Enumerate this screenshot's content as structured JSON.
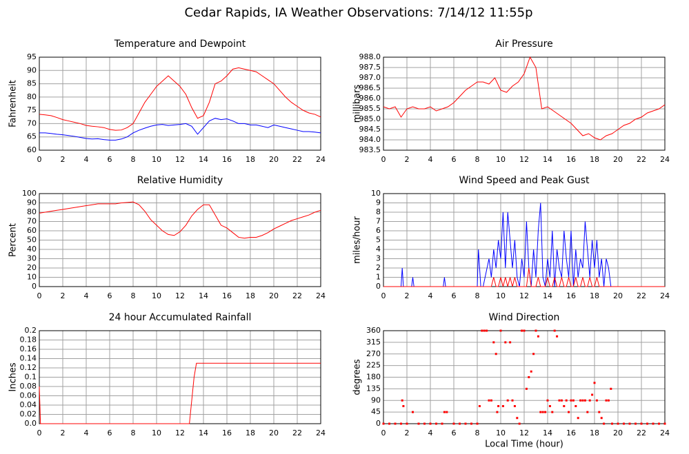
{
  "title": "Cedar Rapids, IA Weather Observations: 7/14/12 11:55p",
  "chart_data": [
    {
      "type": "line",
      "title": "Temperature and Dewpoint",
      "ylabel": "Fahrenheit",
      "grid": true,
      "xlim": [
        0,
        24
      ],
      "xticks": [
        0,
        2,
        4,
        6,
        8,
        10,
        12,
        14,
        16,
        18,
        20,
        22,
        24
      ],
      "ylim": [
        60,
        95
      ],
      "yticks": [
        60,
        65,
        70,
        75,
        80,
        85,
        90,
        95
      ],
      "x": [
        0,
        0.5,
        1,
        1.5,
        2,
        2.5,
        3,
        3.5,
        4,
        4.5,
        5,
        5.5,
        6,
        6.5,
        7,
        7.5,
        8,
        8.5,
        9,
        9.5,
        10,
        10.5,
        11,
        11.5,
        12,
        12.5,
        13,
        13.5,
        14,
        14.5,
        15,
        15.5,
        16,
        16.5,
        17,
        17.5,
        18,
        18.5,
        19,
        19.5,
        20,
        20.5,
        21,
        21.5,
        22,
        22.5,
        23,
        23.5,
        24
      ],
      "series": [
        {
          "color": "#ff0000",
          "values": [
            73.5,
            73.3,
            73,
            72.3,
            71.5,
            71,
            70.5,
            70,
            69.3,
            69,
            68.8,
            68.5,
            67.8,
            67.5,
            67.6,
            68.5,
            70,
            74,
            78,
            81,
            84,
            86,
            88,
            86,
            84,
            81,
            76,
            72,
            73,
            78,
            85,
            86,
            88,
            90.5,
            91,
            90.5,
            90,
            89.5,
            88,
            86.5,
            85,
            82.5,
            80,
            78,
            76.5,
            75,
            74,
            73.5,
            72.5
          ]
        },
        {
          "color": "#0000ff",
          "values": [
            66.5,
            66.5,
            66.3,
            66,
            65.8,
            65.5,
            65.2,
            64.8,
            64.4,
            64.2,
            64.3,
            64,
            63.8,
            63.8,
            64.2,
            65,
            66.5,
            67.5,
            68.3,
            69,
            69.5,
            69.7,
            69.3,
            69.5,
            69.7,
            70,
            69,
            66,
            68.5,
            71,
            72,
            71.5,
            71.8,
            71,
            70,
            70,
            69.5,
            69.5,
            69,
            68.5,
            69.5,
            69,
            68.5,
            68,
            67.5,
            67,
            67,
            66.8,
            66.5
          ]
        }
      ]
    },
    {
      "type": "line",
      "title": "Air Pressure",
      "ylabel": "millibars",
      "grid": true,
      "xlim": [
        0,
        24
      ],
      "xticks": [
        0,
        2,
        4,
        6,
        8,
        10,
        12,
        14,
        16,
        18,
        20,
        22,
        24
      ],
      "ylim": [
        983.5,
        988
      ],
      "yticks": [
        983.5,
        {
          "value": 984,
          "label": "984.0"
        },
        984.5,
        {
          "value": 985,
          "label": "985.0"
        },
        985.5,
        {
          "value": 986,
          "label": "986.0"
        },
        986.5,
        {
          "value": 987,
          "label": "987.0"
        },
        987.5,
        {
          "value": 988,
          "label": "988.0"
        }
      ],
      "x": [
        0,
        0.5,
        1,
        1.5,
        2,
        2.5,
        3,
        3.5,
        4,
        4.5,
        5,
        5.5,
        6,
        6.5,
        7,
        7.5,
        8,
        8.5,
        9,
        9.5,
        10,
        10.5,
        11,
        11.5,
        12,
        12.5,
        13,
        13.5,
        14,
        14.5,
        15,
        15.5,
        16,
        16.5,
        17,
        17.5,
        18,
        18.5,
        19,
        19.5,
        20,
        20.5,
        21,
        21.5,
        22,
        22.5,
        23,
        23.5,
        24
      ],
      "series": [
        {
          "color": "#ff0000",
          "values": [
            985.6,
            985.5,
            985.6,
            985.1,
            985.5,
            985.6,
            985.5,
            985.5,
            985.6,
            985.4,
            985.5,
            985.6,
            985.8,
            986.1,
            986.4,
            986.6,
            986.8,
            986.8,
            986.7,
            987.0,
            986.4,
            986.3,
            986.6,
            986.8,
            987.2,
            988.0,
            987.5,
            985.5,
            985.6,
            985.4,
            985.2,
            985.0,
            984.8,
            984.5,
            984.2,
            984.3,
            984.1,
            984.0,
            984.2,
            984.3,
            984.5,
            984.7,
            984.8,
            985.0,
            985.1,
            985.3,
            985.4,
            985.5,
            985.7
          ]
        }
      ]
    },
    {
      "type": "line",
      "title": "Relative Humidity",
      "ylabel": "Percent",
      "grid": true,
      "xlim": [
        0,
        24
      ],
      "xticks": [
        0,
        2,
        4,
        6,
        8,
        10,
        12,
        14,
        16,
        18,
        20,
        22,
        24
      ],
      "ylim": [
        0,
        100
      ],
      "yticks": [
        0,
        10,
        20,
        30,
        40,
        50,
        60,
        70,
        80,
        90,
        100
      ],
      "x": [
        0,
        0.5,
        1,
        1.5,
        2,
        2.5,
        3,
        3.5,
        4,
        4.5,
        5,
        5.5,
        6,
        6.5,
        7,
        7.5,
        8,
        8.5,
        9,
        9.5,
        10,
        10.5,
        11,
        11.5,
        12,
        12.5,
        13,
        13.5,
        14,
        14.5,
        15,
        15.5,
        16,
        16.5,
        17,
        17.5,
        18,
        18.5,
        19,
        19.5,
        20,
        20.5,
        21,
        21.5,
        22,
        22.5,
        23,
        23.5,
        24
      ],
      "series": [
        {
          "color": "#ff0000",
          "values": [
            79,
            80,
            81,
            82,
            83,
            84,
            85,
            86,
            87,
            88,
            89,
            89,
            89,
            89,
            90,
            90.5,
            91,
            88,
            81,
            72,
            66,
            60,
            56,
            55,
            59,
            66,
            76,
            83,
            88,
            88,
            77,
            66,
            63,
            58,
            53,
            52,
            53,
            53,
            55,
            58,
            62,
            65,
            68,
            71,
            73,
            75,
            77,
            80,
            82
          ]
        }
      ]
    },
    {
      "type": "line",
      "title": "Wind Speed and Peak Gust",
      "ylabel": "miles/hour",
      "grid": true,
      "xlim": [
        0,
        24
      ],
      "xticks": [
        0,
        2,
        4,
        6,
        8,
        10,
        12,
        14,
        16,
        18,
        20,
        22,
        24
      ],
      "ylim": [
        0,
        10
      ],
      "yticks": [
        0,
        1,
        2,
        3,
        4,
        5,
        6,
        7,
        8,
        9,
        10
      ],
      "x": [
        0,
        1.5,
        1.6,
        1.7,
        2.4,
        2.5,
        2.6,
        5.1,
        5.2,
        5.3,
        8,
        8.1,
        8.2,
        8.3,
        8.5,
        9,
        9.2,
        9.4,
        9.6,
        9.8,
        10,
        10.2,
        10.4,
        10.6,
        10.8,
        11,
        11.2,
        11.4,
        11.6,
        11.8,
        12,
        12.2,
        12.4,
        12.6,
        12.8,
        13,
        13.2,
        13.4,
        13.6,
        13.8,
        14,
        14.2,
        14.4,
        14.6,
        14.8,
        15,
        15.2,
        15.4,
        15.6,
        15.8,
        16,
        16.2,
        16.4,
        16.6,
        16.8,
        17,
        17.2,
        17.4,
        17.6,
        17.8,
        18,
        18.2,
        18.4,
        18.6,
        18.8,
        19,
        19.2,
        19.4,
        24
      ],
      "series": [
        {
          "color": "#0000ff",
          "values": [
            0,
            0,
            2,
            0,
            0,
            1,
            0,
            0,
            1,
            0,
            0,
            4,
            2,
            0,
            0,
            3,
            1,
            4,
            2,
            5,
            3,
            8,
            2,
            8,
            5,
            2,
            5,
            1,
            0,
            3,
            1,
            7,
            2,
            0,
            4,
            1,
            6,
            9,
            1,
            0,
            3,
            1,
            6,
            0,
            4,
            2,
            1,
            6,
            3,
            1,
            6,
            0,
            4,
            1,
            3,
            2,
            7,
            4,
            1,
            5,
            2,
            5,
            1,
            3,
            0,
            3,
            2,
            0,
            0
          ]
        },
        {
          "color": "#ff0000",
          "values": [
            0,
            0,
            0,
            0,
            0,
            0,
            0,
            0,
            0,
            0,
            0,
            0,
            0,
            0,
            0,
            0,
            0,
            1,
            0,
            0,
            1,
            0,
            1,
            0,
            1,
            0,
            1,
            0,
            0,
            0,
            0,
            0,
            2,
            0,
            0,
            0,
            1,
            0,
            0,
            0,
            1,
            0,
            0,
            1,
            0,
            0,
            1,
            0,
            0,
            1,
            0,
            0,
            1,
            0,
            0,
            1,
            0,
            0,
            1,
            0,
            0,
            1,
            0,
            0,
            0,
            0,
            0,
            0,
            0
          ]
        }
      ]
    },
    {
      "type": "line",
      "title": "24 hour Accumulated Rainfall",
      "ylabel": "Inches",
      "grid": true,
      "xlim": [
        0,
        24
      ],
      "xticks": [
        0,
        2,
        4,
        6,
        8,
        10,
        12,
        14,
        16,
        18,
        20,
        22,
        24
      ],
      "ylim": [
        0,
        0.2
      ],
      "yticks": [
        {
          "value": 0,
          "label": "0.0"
        },
        0.02,
        0.04,
        0.06,
        0.08,
        0.1,
        0.12,
        0.14,
        0.16,
        0.18,
        0.2
      ],
      "x": [
        0,
        0.1,
        12.8,
        13.0,
        13.2,
        13.4,
        24
      ],
      "series": [
        {
          "color": "#ff0000",
          "values": [
            0.08,
            0,
            0,
            0.05,
            0.1,
            0.13,
            0.13
          ]
        }
      ]
    },
    {
      "type": "scatter",
      "title": "Wind Direction",
      "ylabel": "degrees",
      "xlabel": "Local Time (hour)",
      "grid": true,
      "xlim": [
        0,
        24
      ],
      "xticks": [
        0,
        2,
        4,
        6,
        8,
        10,
        12,
        14,
        16,
        18,
        20,
        22,
        24
      ],
      "ylim": [
        0,
        360
      ],
      "yticks": [
        0,
        45,
        90,
        135,
        180,
        225,
        270,
        315,
        360
      ],
      "x": [
        0,
        0.5,
        1,
        1.5,
        1.6,
        1.7,
        2,
        2.5,
        3,
        3.5,
        4,
        4.5,
        5,
        5.2,
        5.4,
        6,
        6.5,
        7,
        7.5,
        8,
        8.2,
        8.4,
        8.6,
        8.8,
        9,
        9.2,
        9.4,
        9.6,
        9.7,
        9.8,
        10,
        10.2,
        10.4,
        10.6,
        10.8,
        11,
        11.2,
        11.4,
        11.6,
        11.8,
        12,
        12.2,
        12.4,
        12.6,
        12.8,
        13,
        13.2,
        13.4,
        13.6,
        13.8,
        14,
        14.2,
        14.4,
        14.6,
        14.8,
        15,
        15.2,
        15.4,
        15.6,
        15.8,
        16,
        16.2,
        16.4,
        16.6,
        16.8,
        17,
        17.2,
        17.4,
        17.6,
        17.8,
        18,
        18.2,
        18.4,
        18.6,
        18.8,
        19,
        19.2,
        19.4,
        19.5,
        20,
        20.5,
        21,
        21.5,
        22,
        22.5,
        23,
        23.5,
        24
      ],
      "series": [
        {
          "color": "#ff0000",
          "values": [
            0,
            0,
            0,
            0,
            90,
            68,
            0,
            45,
            0,
            0,
            0,
            0,
            0,
            45,
            45,
            0,
            0,
            0,
            0,
            0,
            68,
            360,
            360,
            360,
            90,
            90,
            315,
            270,
            45,
            68,
            360,
            68,
            315,
            90,
            315,
            90,
            68,
            22,
            0,
            360,
            360,
            135,
            180,
            202,
            270,
            360,
            338,
            45,
            45,
            45,
            90,
            68,
            45,
            360,
            338,
            90,
            90,
            68,
            90,
            45,
            90,
            90,
            68,
            22,
            90,
            90,
            90,
            45,
            90,
            112,
            158,
            90,
            45,
            22,
            0,
            90,
            90,
            135,
            0,
            0,
            0,
            0,
            0,
            0,
            0,
            0,
            0,
            0
          ]
        }
      ]
    }
  ]
}
